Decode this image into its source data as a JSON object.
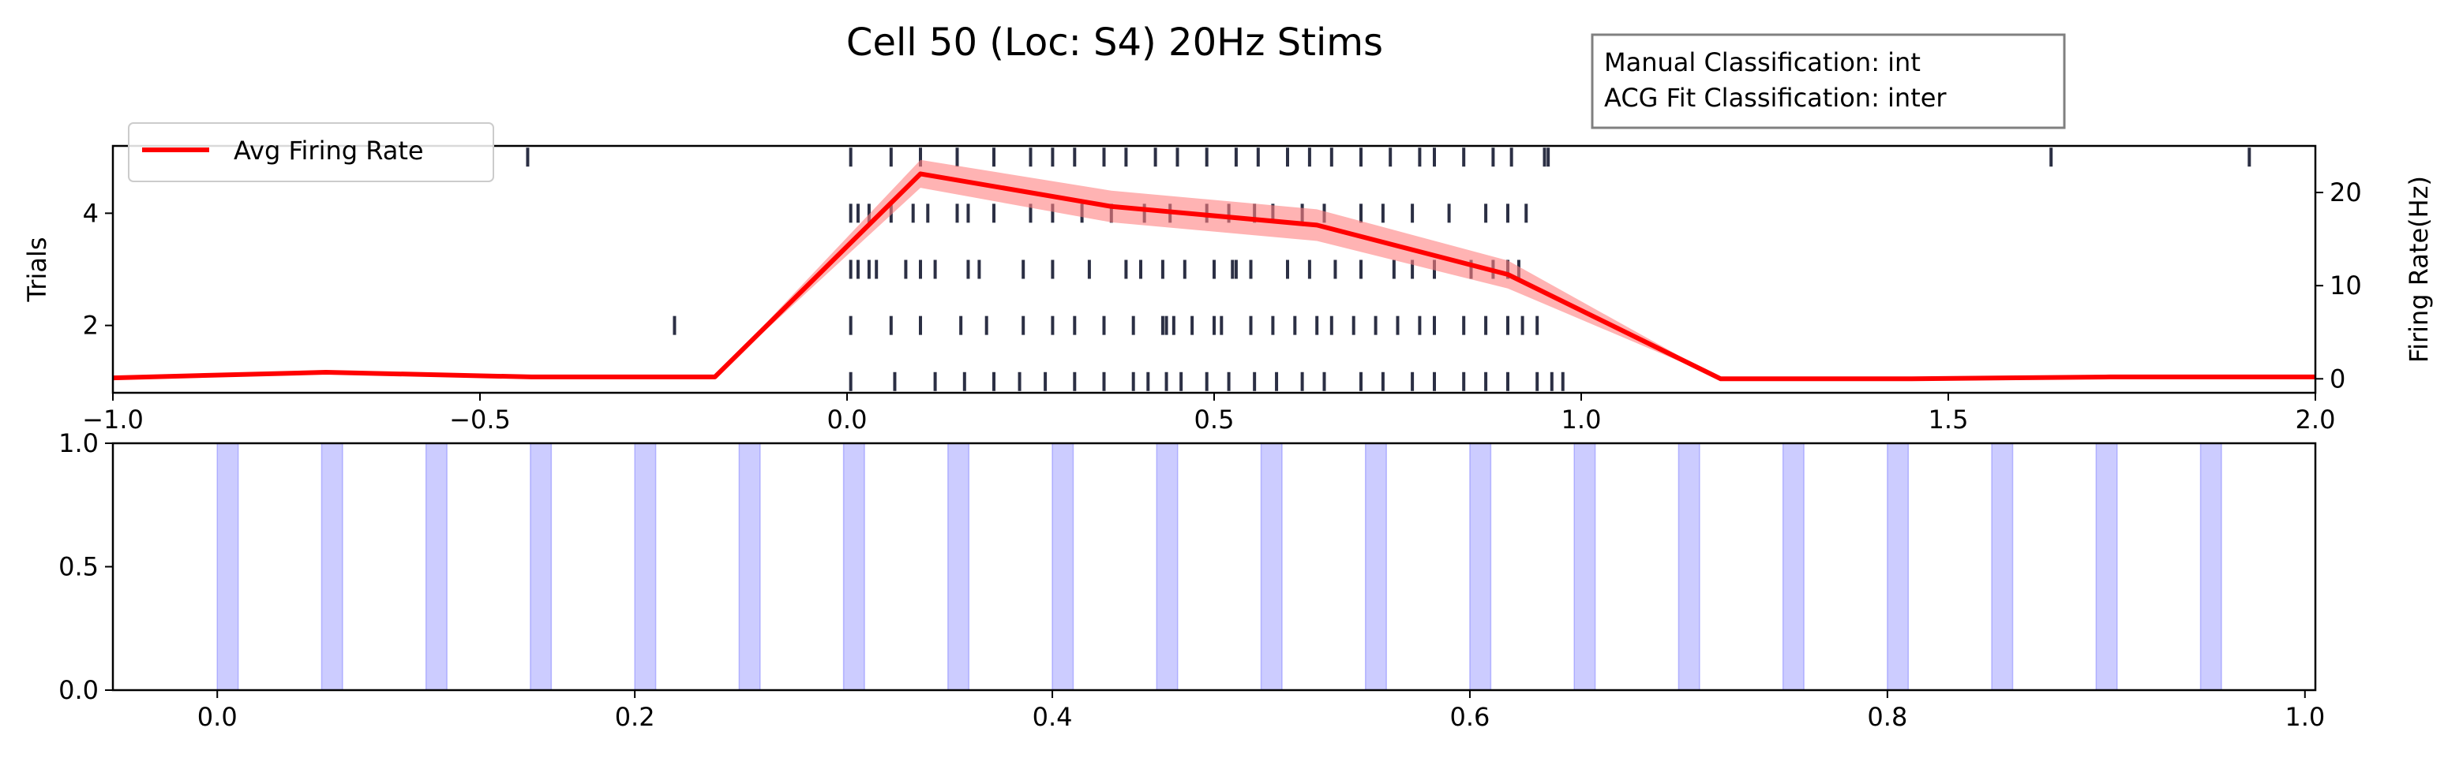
{
  "title": "Cell 50 (Loc: S4) 20Hz Stims",
  "classification_box": {
    "line1": "Manual Classification: int",
    "line2": "ACG Fit Classification: inter"
  },
  "colors": {
    "raster": "#2b2f44",
    "rate_line": "#ff0000",
    "rate_band": "#ff8080",
    "stim": "#8080ff"
  },
  "chart_data": [
    {
      "type": "line",
      "panel": "raster-and-rate",
      "ylabel": "Trials",
      "ylabel_right": "Firing Rate(Hz)",
      "xlim": [
        -1.0,
        2.0
      ],
      "ylim": [
        0.8,
        5.2
      ],
      "ylim_right": [
        -1.5,
        25.0
      ],
      "x_ticks": [
        "−1.0",
        "−0.5",
        "0.0",
        "0.5",
        "1.0",
        "1.5",
        "2.0"
      ],
      "x_tick_values": [
        -1.0,
        -0.5,
        0.0,
        0.5,
        1.0,
        1.5,
        2.0
      ],
      "y_ticks": [
        "2",
        "4"
      ],
      "y_tick_values": [
        2,
        4
      ],
      "y_ticks_right": [
        "0",
        "10",
        "20"
      ],
      "y_tick_values_right": [
        0,
        10,
        20
      ],
      "legend": {
        "label": "Avg Firing Rate",
        "position": "top-left"
      },
      "raster": [
        {
          "trial": 1,
          "spikes": [
            0.005,
            0.065,
            0.12,
            0.16,
            0.2,
            0.235,
            0.27,
            0.31,
            0.35,
            0.39,
            0.41,
            0.435,
            0.455,
            0.49,
            0.52,
            0.555,
            0.585,
            0.62,
            0.65,
            0.7,
            0.73,
            0.77,
            0.8,
            0.84,
            0.87,
            0.9,
            0.94,
            0.96,
            0.975
          ]
        },
        {
          "trial": 2,
          "spikes": [
            -0.235,
            0.005,
            0.06,
            0.1,
            0.155,
            0.19,
            0.24,
            0.28,
            0.31,
            0.35,
            0.39,
            0.43,
            0.435,
            0.445,
            0.47,
            0.5,
            0.51,
            0.55,
            0.58,
            0.61,
            0.64,
            0.66,
            0.69,
            0.72,
            0.75,
            0.78,
            0.8,
            0.84,
            0.87,
            0.9,
            0.92,
            0.94
          ]
        },
        {
          "trial": 3,
          "spikes": [
            0.005,
            0.015,
            0.03,
            0.04,
            0.08,
            0.1,
            0.12,
            0.165,
            0.18,
            0.24,
            0.28,
            0.33,
            0.38,
            0.4,
            0.43,
            0.46,
            0.5,
            0.525,
            0.53,
            0.55,
            0.6,
            0.63,
            0.665,
            0.7,
            0.745,
            0.77,
            0.8,
            0.85,
            0.88,
            0.9,
            0.915
          ]
        },
        {
          "trial": 4,
          "spikes": [
            0.005,
            0.015,
            0.03,
            0.06,
            0.09,
            0.11,
            0.15,
            0.165,
            0.2,
            0.25,
            0.28,
            0.32,
            0.36,
            0.405,
            0.44,
            0.49,
            0.52,
            0.555,
            0.58,
            0.62,
            0.65,
            0.7,
            0.73,
            0.77,
            0.82,
            0.87,
            0.9,
            0.925
          ]
        },
        {
          "trial": 5,
          "spikes": [
            -0.435,
            0.005,
            0.06,
            0.1,
            0.15,
            0.2,
            0.25,
            0.28,
            0.31,
            0.35,
            0.38,
            0.42,
            0.45,
            0.49,
            0.53,
            0.56,
            0.6,
            0.63,
            0.66,
            0.7,
            0.74,
            0.78,
            0.8,
            0.84,
            0.88,
            0.905,
            0.95,
            0.955,
            1.64,
            1.91
          ]
        }
      ],
      "series": [
        {
          "name": "Avg Firing Rate",
          "x": [
            -1.0,
            -0.71,
            -0.43,
            -0.18,
            0.1,
            0.36,
            0.64,
            0.9,
            1.19,
            1.45,
            1.72,
            2.0
          ],
          "values": [
            0.1,
            0.7,
            0.2,
            0.2,
            22.0,
            18.5,
            16.5,
            11.2,
            0.0,
            0.0,
            0.2,
            0.2
          ],
          "band_low": [
            0.1,
            0.7,
            0.2,
            0.2,
            20.5,
            16.8,
            14.8,
            9.7,
            0.0,
            0.0,
            0.2,
            0.2
          ],
          "band_high": [
            0.1,
            0.7,
            0.2,
            0.2,
            23.5,
            20.2,
            18.2,
            12.7,
            0.0,
            0.0,
            0.2,
            0.2
          ]
        }
      ]
    },
    {
      "type": "bar",
      "panel": "stimulus-pulses",
      "xlim": [
        -0.05,
        1.005
      ],
      "ylim": [
        0.0,
        1.0
      ],
      "x_ticks": [
        "0.0",
        "0.2",
        "0.4",
        "0.6",
        "0.8",
        "1.0"
      ],
      "x_tick_values": [
        0.0,
        0.2,
        0.4,
        0.6,
        0.8,
        1.0
      ],
      "y_ticks": [
        "0.0",
        "0.5",
        "1.0"
      ],
      "y_tick_values": [
        0.0,
        0.5,
        1.0
      ],
      "pulse_width": 0.01,
      "pulse_starts": [
        0.0,
        0.05,
        0.1,
        0.15,
        0.2,
        0.25,
        0.3,
        0.35,
        0.4,
        0.45,
        0.5,
        0.55,
        0.6,
        0.65,
        0.7,
        0.75,
        0.8,
        0.85,
        0.9,
        0.95
      ]
    }
  ]
}
